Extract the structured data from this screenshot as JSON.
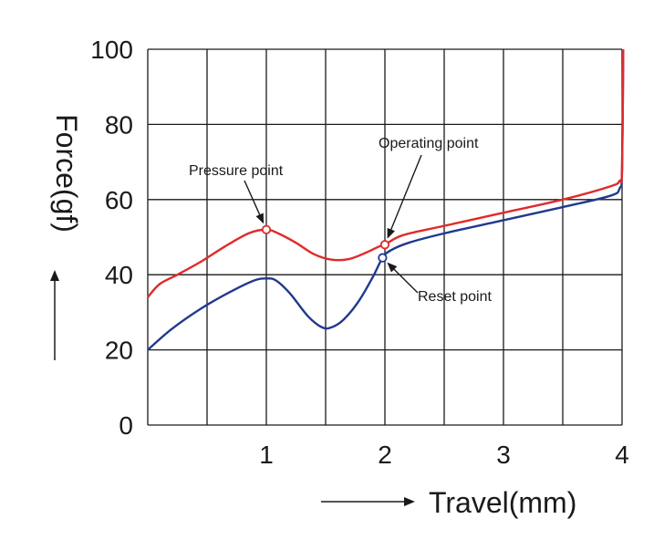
{
  "chart_data": {
    "type": "line",
    "title": "",
    "xlabel": "Travel(mm)",
    "ylabel": "Force(gf)",
    "xlim": [
      0,
      4
    ],
    "ylim": [
      0,
      100
    ],
    "x_ticks": [
      1,
      2,
      3,
      4
    ],
    "y_ticks": [
      0,
      20,
      40,
      60,
      80,
      100
    ],
    "grid": true,
    "grid_x_step": 0.5,
    "grid_y_step": 20,
    "series": [
      {
        "color": "#e02a2a",
        "points": [
          [
            0,
            34
          ],
          [
            0.1,
            37.5
          ],
          [
            0.25,
            40
          ],
          [
            0.45,
            43.5
          ],
          [
            0.65,
            47.5
          ],
          [
            0.85,
            51
          ],
          [
            1.0,
            52
          ],
          [
            1.1,
            51
          ],
          [
            1.25,
            48.5
          ],
          [
            1.4,
            45.5
          ],
          [
            1.55,
            44
          ],
          [
            1.7,
            44.2
          ],
          [
            1.85,
            46
          ],
          [
            1.95,
            47.5
          ],
          [
            2.0,
            48
          ],
          [
            2.15,
            50.5
          ],
          [
            2.5,
            53
          ],
          [
            3.0,
            56.5
          ],
          [
            3.5,
            60
          ],
          [
            3.9,
            63.5
          ],
          [
            3.98,
            65
          ],
          [
            4.0,
            68
          ],
          [
            4.01,
            100
          ]
        ]
      },
      {
        "color": "#1f3a8f",
        "points": [
          [
            0,
            20
          ],
          [
            0.2,
            25.5
          ],
          [
            0.45,
            31
          ],
          [
            0.7,
            35.5
          ],
          [
            0.9,
            38.5
          ],
          [
            1.0,
            39
          ],
          [
            1.08,
            38.5
          ],
          [
            1.2,
            35
          ],
          [
            1.35,
            29
          ],
          [
            1.47,
            26
          ],
          [
            1.55,
            26
          ],
          [
            1.65,
            28
          ],
          [
            1.78,
            33
          ],
          [
            1.9,
            39.5
          ],
          [
            1.98,
            44.5
          ],
          [
            2.05,
            46.5
          ],
          [
            2.2,
            48.5
          ],
          [
            2.5,
            51
          ],
          [
            3.0,
            54.5
          ],
          [
            3.5,
            58
          ],
          [
            3.9,
            61
          ],
          [
            3.98,
            63
          ],
          [
            4.0,
            68
          ],
          [
            4.01,
            100
          ]
        ]
      }
    ],
    "annotations": [
      {
        "label": "Pressure point",
        "at": [
          1.0,
          52
        ],
        "marker_color": "#e02a2a"
      },
      {
        "label": "Operating point",
        "at": [
          2.0,
          48
        ],
        "marker_color": "#e02a2a"
      },
      {
        "label": "Reset point",
        "at": [
          1.98,
          44.5
        ],
        "marker_color": "#1f3a8f"
      }
    ]
  }
}
